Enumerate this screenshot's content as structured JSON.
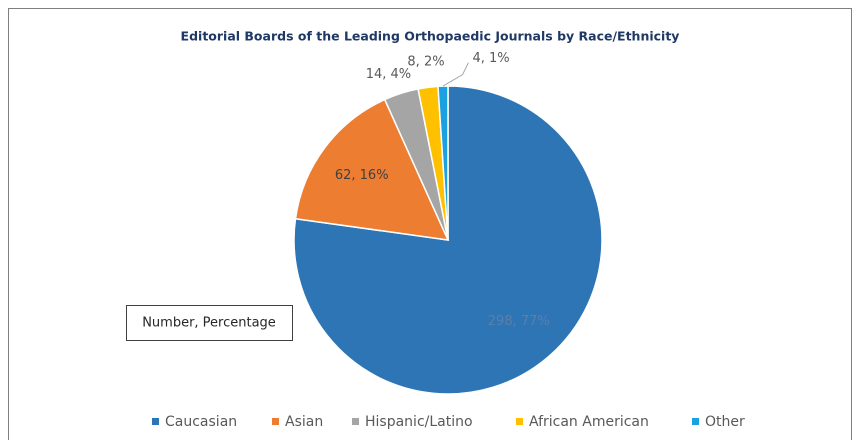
{
  "chart_data": {
    "type": "pie",
    "title": "Editorial Boards of the Leading Orthopaedic Journals by Race/Ethnicity",
    "categories": [
      "Caucasian",
      "Asian",
      "Hispanic/Latino",
      "African American",
      "Other"
    ],
    "values": [
      298,
      62,
      14,
      8,
      4
    ],
    "value_labels": [
      "298, 77%",
      "62, 16%",
      "14, 4%",
      "8, 2%",
      "4, 1%"
    ],
    "colors": [
      "#2e75b6",
      "#ed7d31",
      "#a5a5a5",
      "#ffc000",
      "#1ba1e2"
    ],
    "annotation": "Number, Percentage",
    "legend": "bottom"
  }
}
